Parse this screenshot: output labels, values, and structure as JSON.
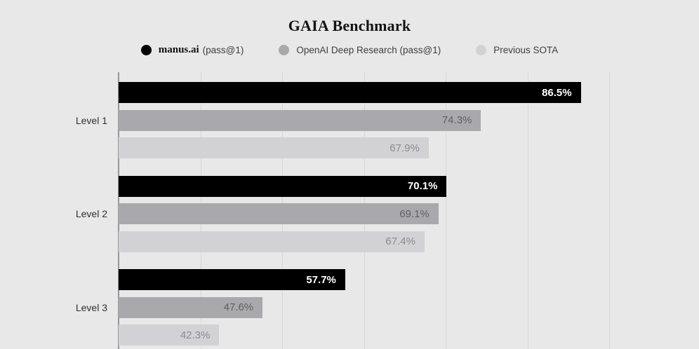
{
  "background": "#e8e8e8",
  "chart_data": {
    "type": "bar",
    "orientation": "horizontal",
    "title": "GAIA Benchmark",
    "categories": [
      "Level 1",
      "Level 2",
      "Level 3"
    ],
    "series": [
      {
        "name": "manus.ai (pass@1)",
        "color": "#000000",
        "label_color": "#ffffff",
        "values": [
          86.5,
          70.1,
          57.7
        ],
        "labels": [
          "86.5%",
          "70.1%",
          "57.7%"
        ]
      },
      {
        "name": "OpenAI Deep Research (pass@1)",
        "color": "#a9a9ad",
        "label_color": "#606064",
        "values": [
          74.3,
          69.1,
          47.6
        ],
        "labels": [
          "74.3%",
          "69.1%",
          "47.6%"
        ]
      },
      {
        "name": "Previous SOTA",
        "color": "#d2d2d6",
        "label_color": "#8b8b90",
        "values": [
          67.9,
          67.4,
          42.3
        ],
        "labels": [
          "67.9%",
          "67.4%",
          "42.3%"
        ]
      }
    ],
    "xlim": [
      30,
      100
    ],
    "gridlines": [
      40,
      50,
      60,
      70,
      80,
      90
    ],
    "grid": "vertical",
    "legend_position": "top",
    "value_unit": "%"
  },
  "legend_items": [
    {
      "primary": "manus.ai",
      "secondary": "(pass@1)",
      "color": "#000000",
      "serif_primary": true
    },
    {
      "primary": "",
      "secondary": "OpenAI Deep Research (pass@1)",
      "color": "#a9a9ad",
      "serif_primary": false
    },
    {
      "primary": "",
      "secondary": "Previous SOTA",
      "color": "#d2d2d6",
      "serif_primary": false
    }
  ]
}
